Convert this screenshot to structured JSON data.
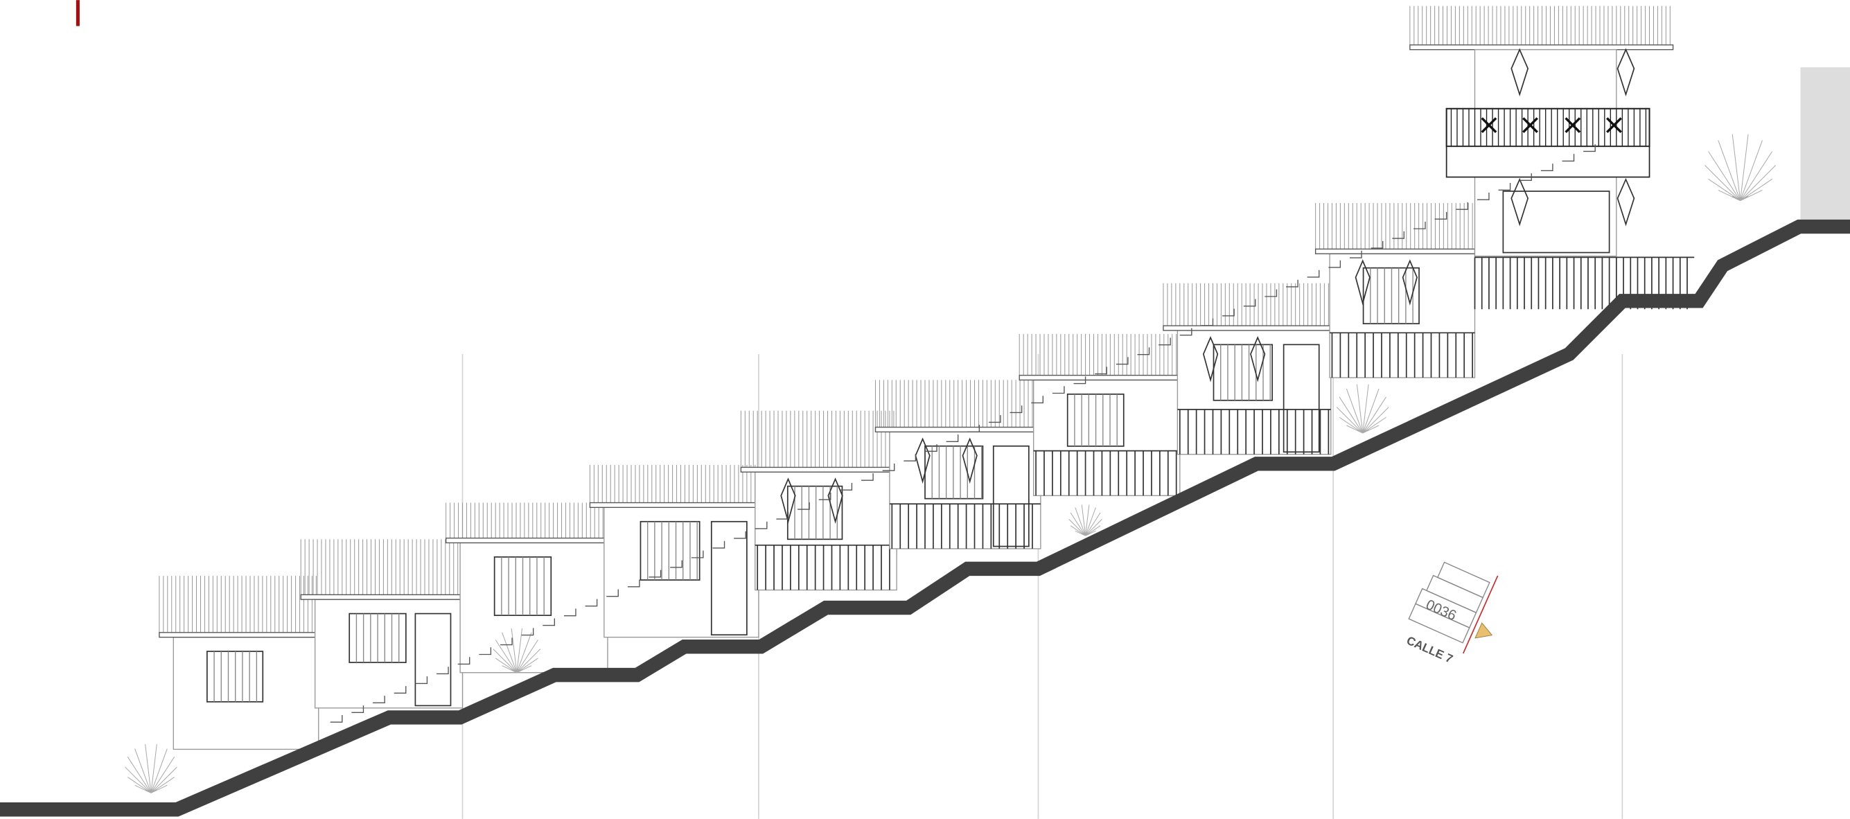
{
  "address": {
    "number": "0036",
    "street": "CALLE 7"
  }
}
